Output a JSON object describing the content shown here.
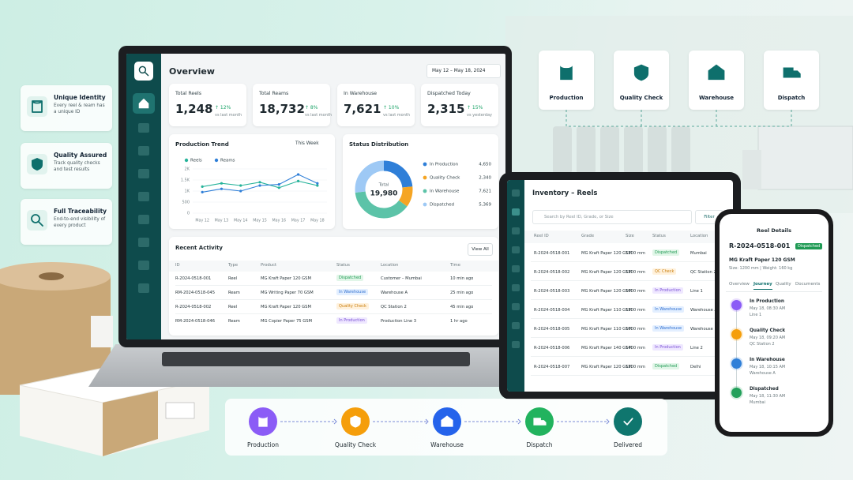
{
  "features": [
    {
      "title": "Unique Identity",
      "text": "Every reel & ream has a unique ID"
    },
    {
      "title": "Quality Assured",
      "text": "Track quality checks and test results"
    },
    {
      "title": "Full Traceability",
      "text": "End-to-end visibility of every product"
    }
  ],
  "top_steps": [
    "Production",
    "Quality Check",
    "Warehouse",
    "Dispatch"
  ],
  "dashboard": {
    "title": "Overview",
    "date_range": "May 12 – May 18, 2024",
    "kpis": [
      {
        "label": "Total Reels",
        "value": "1,248",
        "change": "↑ 12%",
        "note": "vs last month"
      },
      {
        "label": "Total Reams",
        "value": "18,732",
        "change": "↑ 8%",
        "note": "vs last month"
      },
      {
        "label": "In Warehouse",
        "value": "7,621",
        "change": "↑ 10%",
        "note": "vs last month"
      },
      {
        "label": "Dispatched Today",
        "value": "2,315",
        "change": "↑ 15%",
        "note": "vs yesterday"
      }
    ],
    "production_trend": {
      "type": "line",
      "title": "Production Trend",
      "period": "This Week",
      "categories": [
        "May 12",
        "May 13",
        "May 14",
        "May 15",
        "May 16",
        "May 17",
        "May 18"
      ],
      "series": [
        {
          "name": "Reels",
          "color": "#26b39a",
          "values": [
            1200,
            1350,
            1250,
            1400,
            1150,
            1450,
            1250
          ]
        },
        {
          "name": "Reams",
          "color": "#2f7fd8",
          "values": [
            950,
            1100,
            1000,
            1250,
            1300,
            1750,
            1350
          ]
        }
      ],
      "ylim": [
        0,
        2000
      ],
      "yticks": [
        0,
        500,
        {
          "value": 1000,
          "label": "1K"
        },
        {
          "value": 1500,
          "label": "1.5K"
        },
        {
          "value": 2000,
          "label": "2K"
        }
      ],
      "grid": true
    },
    "status_distribution": {
      "type": "pie",
      "title": "Status Distribution",
      "total_caption": "Total",
      "total": {
        "value": 19980,
        "label": "19,980"
      },
      "categories": [
        "In Production",
        "Quality Check",
        "In Warehouse",
        "Dispatched"
      ],
      "values": [
        4650,
        2340,
        7621,
        5369
      ],
      "value_labels": [
        "4,650",
        "2,340",
        "7,621",
        "5,369"
      ],
      "colors": [
        "#2f7fd8",
        "#f5a524",
        "#5cc3a8",
        "#9ec9f5"
      ]
    },
    "recent_activity": {
      "title": "Recent Activity",
      "action": "View All",
      "columns": [
        "ID",
        "Type",
        "Product",
        "Status",
        "Location",
        "Time"
      ],
      "rows": [
        [
          "R-2024-0518-001",
          "Reel",
          "MG Kraft Paper 120 GSM",
          "Dispatched",
          "Customer – Mumbai",
          "10 min ago"
        ],
        [
          "RM-2024-0518-045",
          "Ream",
          "MG Writing Paper 70 GSM",
          "In Warehouse",
          "Warehouse A",
          "25 min ago"
        ],
        [
          "R-2024-0518-002",
          "Reel",
          "MG Kraft Paper 120 GSM",
          "Quality Check",
          "QC Station 2",
          "45 min ago"
        ],
        [
          "RM-2024-0518-046",
          "Ream",
          "MG Copier Paper 75 GSM",
          "In Production",
          "Production Line 3",
          "1 hr ago"
        ]
      ]
    }
  },
  "inventory": {
    "title": "Inventory – Reels",
    "search_placeholder": "Search by Reel ID, Grade, or Size",
    "filter": "Filter",
    "columns": [
      "Reel ID",
      "Grade",
      "Size",
      "Status",
      "Location"
    ],
    "rows": [
      [
        "R-2024-0518-001",
        "MG Kraft Paper 120 GSM",
        "1200 mm",
        "Dispatched",
        "Mumbai"
      ],
      [
        "R-2024-0518-002",
        "MG Kraft Paper 120 GSM",
        "1200 mm",
        "QC Check",
        "QC Station 2"
      ],
      [
        "R-2024-0518-003",
        "MG Kraft Paper 120 GSM",
        "1000 mm",
        "In Production",
        "Line 1"
      ],
      [
        "R-2024-0518-004",
        "MG Kraft Paper 110 GSM",
        "1200 mm",
        "In Warehouse",
        "Warehouse A"
      ],
      [
        "R-2024-0518-005",
        "MG Kraft Paper 110 GSM",
        "1000 mm",
        "In Warehouse",
        "Warehouse B"
      ],
      [
        "R-2024-0518-006",
        "MG Kraft Paper 140 GSM",
        "1400 mm",
        "In Production",
        "Line 2"
      ],
      [
        "R-2024-0518-007",
        "MG Kraft Paper 120 GSM",
        "1200 mm",
        "Dispatched",
        "Delhi"
      ]
    ]
  },
  "reel_details": {
    "header": "Reel Details",
    "id": "R-2024-0518-001",
    "badge": "Dispatched",
    "product": "MG Kraft Paper 120 GSM",
    "spec": "Size: 1200 mm | Weight: 160 kg",
    "tabs": [
      "Overview",
      "Journey",
      "Quality",
      "Documents"
    ],
    "journey": [
      {
        "title": "In Production",
        "time": "May 18, 08:30 AM",
        "place": "Line 1"
      },
      {
        "title": "Quality Check",
        "time": "May 18, 09:20 AM",
        "place": "QC Station 2"
      },
      {
        "title": "In Warehouse",
        "time": "May 18, 10:15 AM",
        "place": "Warehouse A"
      },
      {
        "title": "Dispatched",
        "time": "May 18, 11:30 AM",
        "place": "Mumbai"
      }
    ]
  },
  "flow_steps": [
    "Production",
    "Quality Check",
    "Warehouse",
    "Dispatch",
    "Delivered"
  ]
}
